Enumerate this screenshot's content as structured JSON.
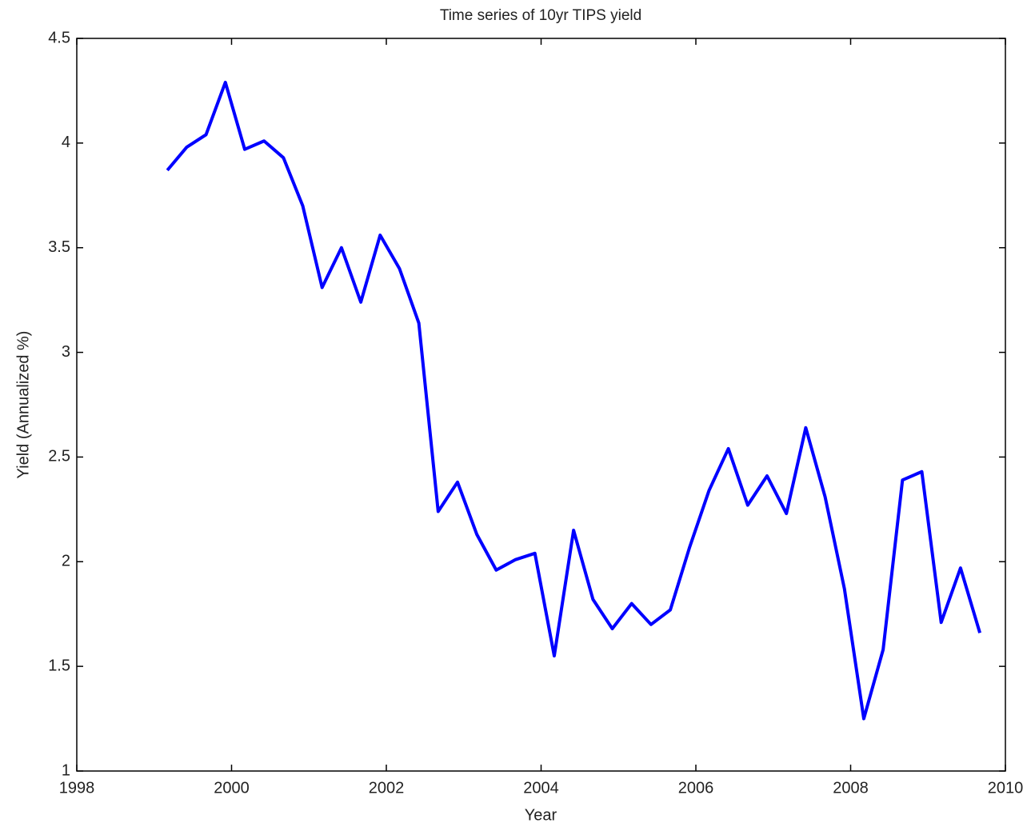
{
  "chart_data": {
    "type": "line",
    "title": "Time series of 10yr TIPS yield",
    "x_label": "Year",
    "y_label": "Yield (Annualized %)",
    "x": [
      1999.17,
      1999.42,
      1999.67,
      1999.92,
      2000.17,
      2000.42,
      2000.67,
      2000.92,
      2001.17,
      2001.42,
      2001.67,
      2001.92,
      2002.17,
      2002.42,
      2002.67,
      2002.92,
      2003.17,
      2003.42,
      2003.67,
      2003.92,
      2004.17,
      2004.42,
      2004.67,
      2004.92,
      2005.17,
      2005.42,
      2005.67,
      2005.92,
      2006.17,
      2006.42,
      2006.67,
      2006.92,
      2007.17,
      2007.42,
      2007.67,
      2007.92,
      2008.17,
      2008.42,
      2008.67,
      2008.92,
      2009.17,
      2009.42,
      2009.67
    ],
    "series": [
      {
        "name": "10yr TIPS yield",
        "color": "#0000ff",
        "values": [
          3.87,
          3.98,
          4.04,
          4.29,
          3.97,
          4.01,
          3.93,
          3.7,
          3.31,
          3.5,
          3.24,
          3.56,
          3.4,
          3.14,
          2.24,
          2.38,
          2.13,
          1.96,
          2.01,
          2.04,
          1.55,
          2.15,
          1.82,
          1.68,
          1.8,
          1.7,
          1.77,
          2.07,
          2.34,
          2.54,
          2.27,
          2.41,
          2.23,
          2.64,
          2.31,
          1.87,
          1.25,
          1.58,
          2.39,
          2.43,
          1.71,
          1.97,
          1.66
        ]
      }
    ],
    "xlim": [
      1998,
      2010
    ],
    "xticks": [
      1998,
      2000,
      2002,
      2004,
      2006,
      2008,
      2010
    ],
    "ylim": [
      1,
      4.5
    ],
    "yticks": [
      1,
      1.5,
      2,
      2.5,
      3,
      3.5,
      4,
      4.5
    ],
    "grid": false
  }
}
